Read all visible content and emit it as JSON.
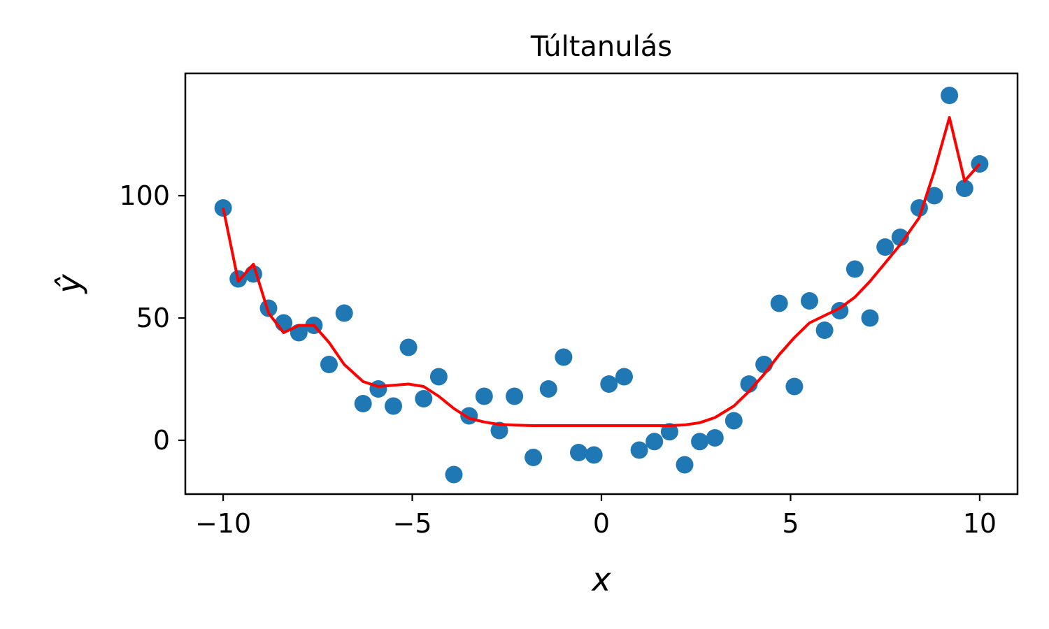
{
  "chart_data": {
    "type": "scatter",
    "title": "Túltanulás",
    "xlabel": "x",
    "ylabel": "ŷ",
    "xlim": [
      -11,
      11
    ],
    "ylim": [
      -22,
      150
    ],
    "xticks": [
      -10,
      -5,
      0,
      5,
      10
    ],
    "xtick_labels": [
      "−10",
      "−5",
      "0",
      "5",
      "10"
    ],
    "yticks": [
      0,
      50,
      100
    ],
    "ytick_labels": [
      "0",
      "50",
      "100"
    ],
    "grid": false,
    "colors": {
      "points": "#1f77b4",
      "line": "#ff0000"
    },
    "series": [
      {
        "type": "scatter",
        "points": [
          [
            -10.0,
            95
          ],
          [
            -9.6,
            66
          ],
          [
            -9.2,
            68
          ],
          [
            -8.8,
            54
          ],
          [
            -8.4,
            48
          ],
          [
            -8.0,
            44
          ],
          [
            -7.6,
            47
          ],
          [
            -7.2,
            31
          ],
          [
            -6.8,
            52
          ],
          [
            -6.3,
            15
          ],
          [
            -5.9,
            21
          ],
          [
            -5.5,
            14
          ],
          [
            -5.1,
            38
          ],
          [
            -4.7,
            17
          ],
          [
            -4.3,
            26
          ],
          [
            -3.9,
            -14
          ],
          [
            -3.5,
            10
          ],
          [
            -3.1,
            18
          ],
          [
            -2.7,
            4
          ],
          [
            -2.3,
            18
          ],
          [
            -1.8,
            -7
          ],
          [
            -1.4,
            21
          ],
          [
            -1.0,
            34
          ],
          [
            -0.6,
            -5
          ],
          [
            -0.2,
            -6
          ],
          [
            0.2,
            23
          ],
          [
            0.6,
            26
          ],
          [
            1.0,
            -4
          ],
          [
            1.4,
            -0.5
          ],
          [
            1.8,
            3.5
          ],
          [
            2.2,
            -10
          ],
          [
            2.6,
            -0.5
          ],
          [
            3.0,
            1
          ],
          [
            3.5,
            8
          ],
          [
            3.9,
            23
          ],
          [
            4.3,
            31
          ],
          [
            4.7,
            56
          ],
          [
            5.1,
            22
          ],
          [
            5.5,
            57
          ],
          [
            5.9,
            45
          ],
          [
            6.3,
            53
          ],
          [
            6.7,
            70
          ],
          [
            7.1,
            50
          ],
          [
            7.5,
            79
          ],
          [
            7.9,
            83
          ],
          [
            8.4,
            95
          ],
          [
            8.8,
            100
          ],
          [
            9.2,
            141
          ],
          [
            9.6,
            103
          ],
          [
            10.0,
            113
          ]
        ]
      },
      {
        "type": "line",
        "points": [
          [
            -10.0,
            95
          ],
          [
            -9.6,
            65
          ],
          [
            -9.2,
            72
          ],
          [
            -8.8,
            52
          ],
          [
            -8.4,
            44
          ],
          [
            -8.0,
            47
          ],
          [
            -7.6,
            47
          ],
          [
            -7.2,
            40
          ],
          [
            -6.8,
            31
          ],
          [
            -6.3,
            24
          ],
          [
            -5.9,
            22
          ],
          [
            -5.5,
            22.5
          ],
          [
            -5.1,
            23
          ],
          [
            -4.7,
            22
          ],
          [
            -4.3,
            18
          ],
          [
            -3.9,
            13
          ],
          [
            -3.5,
            9
          ],
          [
            -3.1,
            7.5
          ],
          [
            -2.7,
            6.5
          ],
          [
            -2.3,
            6.2
          ],
          [
            -1.8,
            6
          ],
          [
            -1.4,
            6
          ],
          [
            -1.0,
            6
          ],
          [
            -0.6,
            6
          ],
          [
            -0.2,
            6
          ],
          [
            0.2,
            6
          ],
          [
            0.6,
            6
          ],
          [
            1.0,
            6
          ],
          [
            1.4,
            6
          ],
          [
            1.8,
            6
          ],
          [
            2.2,
            6.3
          ],
          [
            2.6,
            7.2
          ],
          [
            3.0,
            9.3
          ],
          [
            3.5,
            14
          ],
          [
            3.9,
            20
          ],
          [
            4.3,
            27
          ],
          [
            4.7,
            35
          ],
          [
            5.1,
            42
          ],
          [
            5.5,
            48
          ],
          [
            5.9,
            51
          ],
          [
            6.3,
            54
          ],
          [
            6.7,
            58.5
          ],
          [
            7.1,
            65
          ],
          [
            7.5,
            72.5
          ],
          [
            7.9,
            80
          ],
          [
            8.4,
            91
          ],
          [
            8.8,
            110
          ],
          [
            9.2,
            132
          ],
          [
            9.6,
            106
          ],
          [
            10.0,
            113
          ]
        ]
      }
    ]
  }
}
